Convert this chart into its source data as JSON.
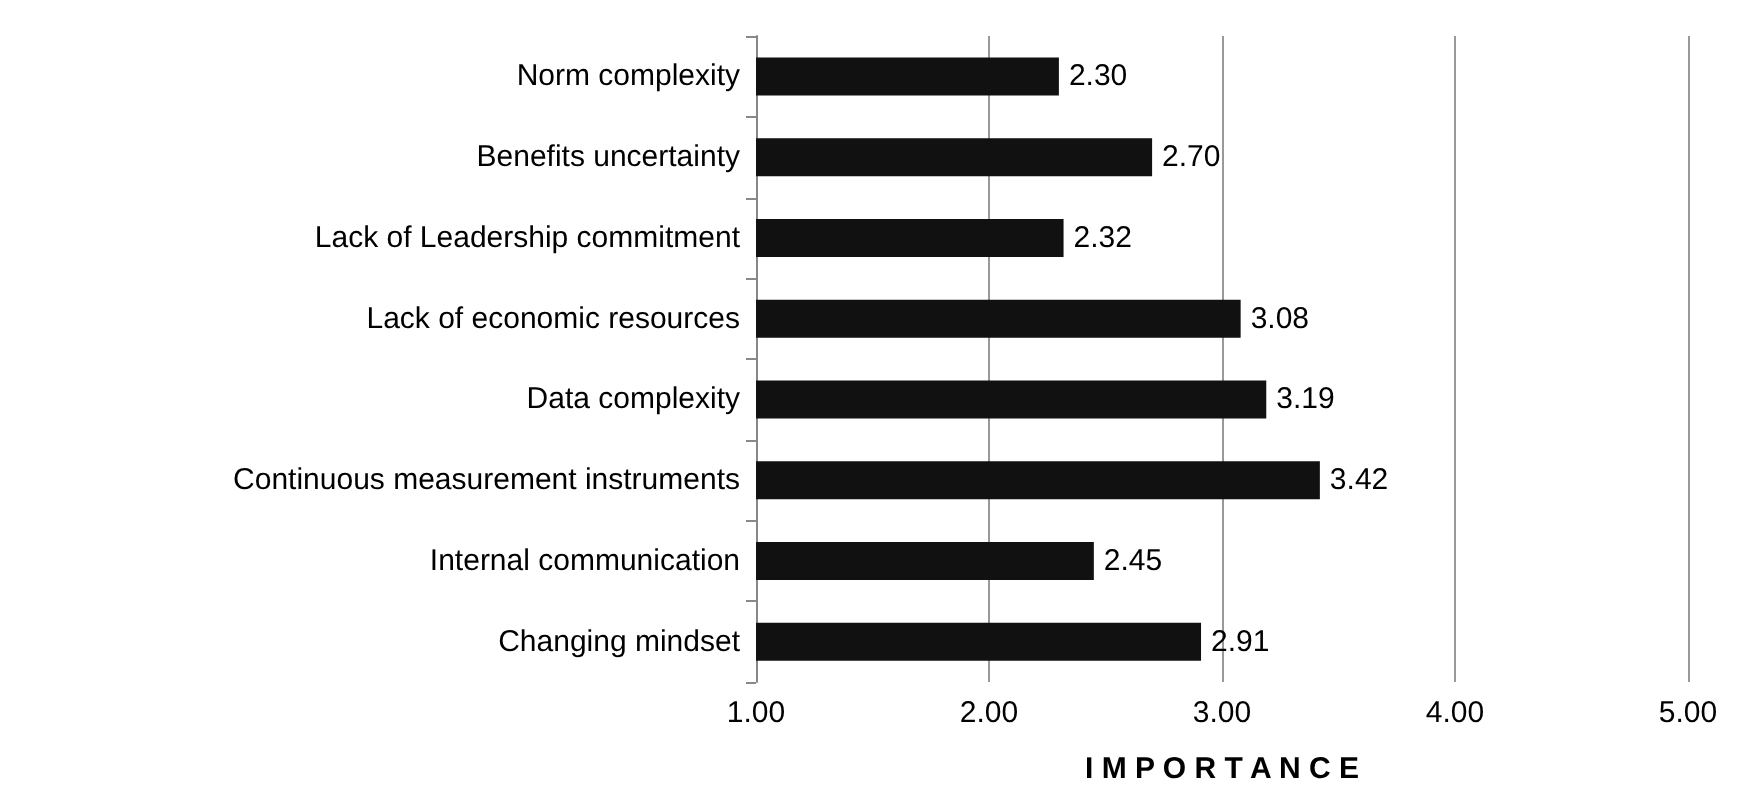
{
  "chart_data": {
    "type": "bar",
    "orientation": "horizontal",
    "xlabel": "I M P O R T A N C E",
    "categories": [
      "Norm complexity",
      "Benefits uncertainty",
      "Lack of Leadership commitment",
      "Lack of economic resources",
      "Data complexity",
      "Continuous measurement instruments",
      "Internal communication",
      "Changing mindset"
    ],
    "values": [
      2.3,
      2.7,
      2.32,
      3.08,
      3.19,
      3.42,
      2.45,
      2.91
    ],
    "value_labels": [
      "2.30",
      "2.70",
      "2.32",
      "3.08",
      "3.19",
      "3.42",
      "2.45",
      "2.91"
    ],
    "color": "#111111",
    "xlim": [
      1,
      5
    ],
    "xticks": [
      {
        "value": 1,
        "label": "1.00"
      },
      {
        "value": 2,
        "label": "2.00"
      },
      {
        "value": 3,
        "label": "3.00"
      },
      {
        "value": 4,
        "label": "4.00"
      },
      {
        "value": 5,
        "label": "5.00"
      }
    ],
    "grid": "x"
  }
}
